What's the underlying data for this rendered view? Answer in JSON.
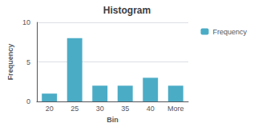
{
  "chart_data": {
    "type": "bar",
    "title": "Histogram",
    "xlabel": "Bin",
    "ylabel": "Frequency",
    "categories": [
      "20",
      "25",
      "30",
      "35",
      "40",
      "More"
    ],
    "series": [
      {
        "name": "Frequency",
        "color": "#4BACC6",
        "values": [
          1,
          8,
          2,
          2,
          3,
          2
        ]
      }
    ],
    "ylim": [
      0,
      10
    ],
    "yticks": [
      0,
      5,
      10
    ],
    "grid": true,
    "legend": "upper right"
  }
}
